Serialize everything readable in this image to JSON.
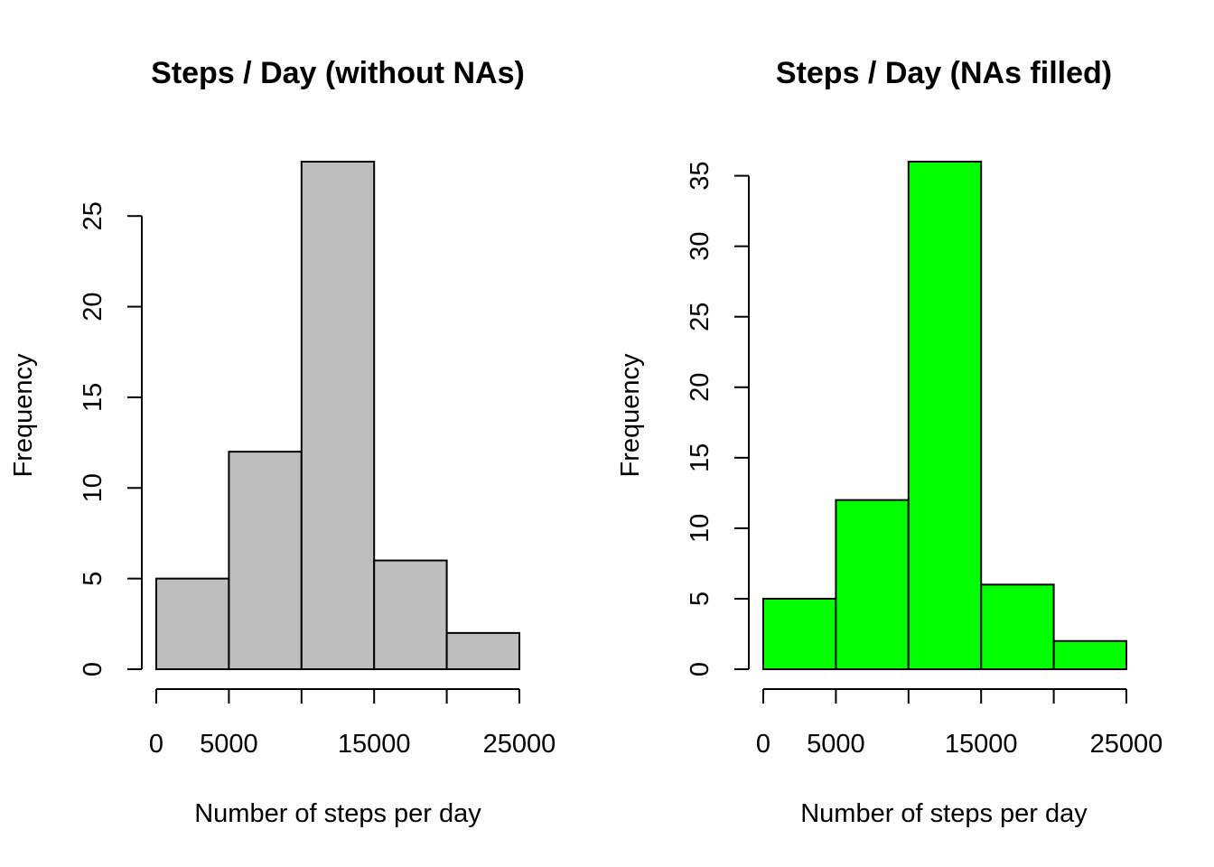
{
  "chart_data": [
    {
      "type": "bar",
      "title": "Steps / Day (without NAs)",
      "xlabel": "Number of steps per day",
      "ylabel": "Frequency",
      "bin_edges": [
        0,
        5000,
        10000,
        15000,
        20000,
        25000
      ],
      "values": [
        5,
        12,
        28,
        6,
        2
      ],
      "bar_color": "#bebebe",
      "x_ticks": [
        0,
        5000,
        10000,
        15000,
        20000,
        25000
      ],
      "x_tick_labels": [
        "0",
        "5000",
        "",
        "15000",
        "",
        "25000"
      ],
      "y_ticks": [
        0,
        5,
        10,
        15,
        20,
        25
      ],
      "y_tick_labels": [
        "0",
        "5",
        "10",
        "15",
        "20",
        "25"
      ],
      "ylim": [
        0,
        28
      ],
      "grid": false
    },
    {
      "type": "bar",
      "title": "Steps / Day (NAs filled)",
      "xlabel": "Number of steps per day",
      "ylabel": "Frequency",
      "bin_edges": [
        0,
        5000,
        10000,
        15000,
        20000,
        25000
      ],
      "values": [
        5,
        12,
        36,
        6,
        2
      ],
      "bar_color": "#00ff00",
      "x_ticks": [
        0,
        5000,
        10000,
        15000,
        20000,
        25000
      ],
      "x_tick_labels": [
        "0",
        "5000",
        "",
        "15000",
        "",
        "25000"
      ],
      "y_ticks": [
        0,
        5,
        10,
        15,
        20,
        25,
        30,
        35
      ],
      "y_tick_labels": [
        "0",
        "5",
        "10",
        "15",
        "20",
        "25",
        "30",
        "35"
      ],
      "ylim": [
        0,
        36
      ],
      "grid": false
    }
  ]
}
